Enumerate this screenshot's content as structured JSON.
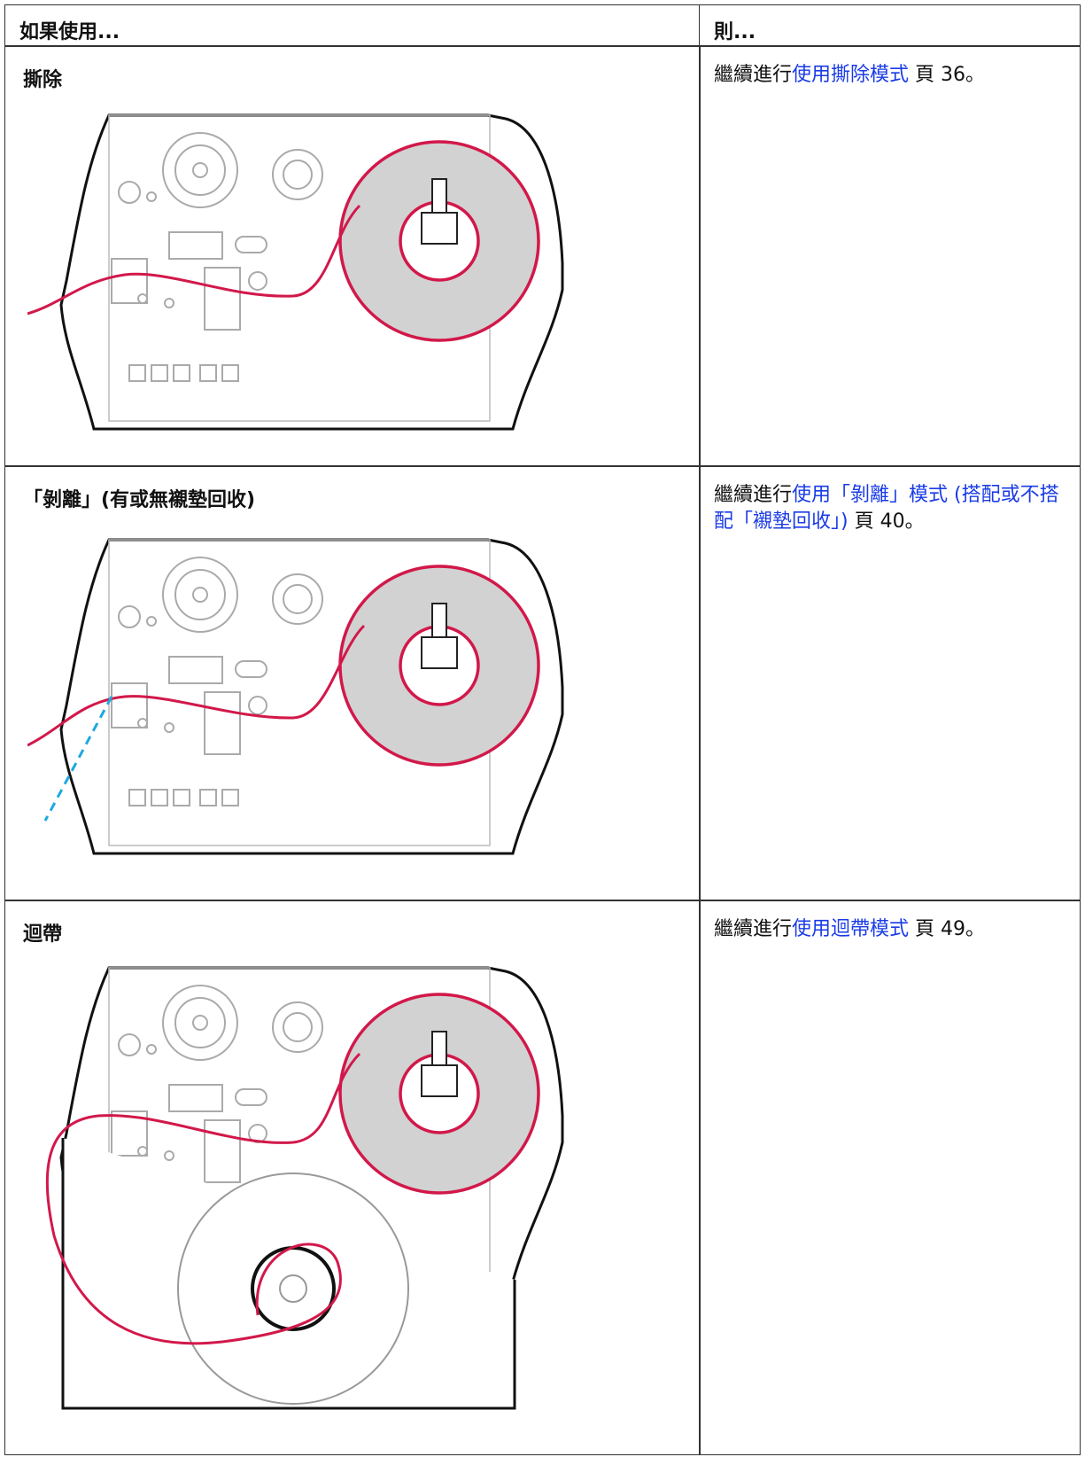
{
  "table": {
    "header": [
      "如果使用...",
      "則..."
    ],
    "rows": [
      {
        "mode": "撕除",
        "action": {
          "prefix": "繼續進行",
          "link": "使用撕除模式",
          "suffix": " 頁 36。"
        }
      },
      {
        "mode": "「剝離」(有或無襯墊回收)",
        "action": {
          "prefix": "繼續進行",
          "link": "使用「剝離」模式 (搭配或不搭配「襯墊回收」)",
          "suffix": " 頁 40。"
        }
      },
      {
        "mode": "迴帶",
        "action": {
          "prefix": "繼續進行",
          "link": "使用迴帶模式",
          "suffix": " 頁 49。"
        }
      }
    ]
  }
}
